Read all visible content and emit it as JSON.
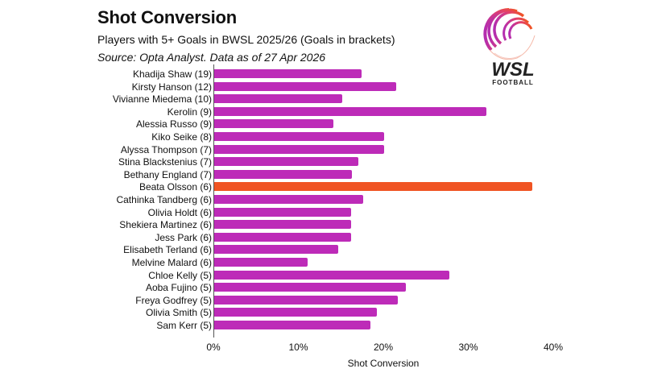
{
  "header": {
    "title": "Shot Conversion",
    "subtitle": "Players with 5+ Goals in BWSL 2025/26 (Goals in brackets)",
    "source": "Source: Opta Analyst. Data as of 27 Apr 2026"
  },
  "logo": {
    "text": "WSL",
    "subtext": "FOOTBALL"
  },
  "colors": {
    "default_bar": "#BD2BB8",
    "highlight_bar": "#F05423",
    "axis": "#555555"
  },
  "chart_data": {
    "type": "bar",
    "orientation": "horizontal",
    "title": "Shot Conversion",
    "subtitle": "Players with 5+ Goals in BWSL 2025/26 (Goals in brackets)",
    "xlabel": "Shot Conversion",
    "ylabel": "",
    "xlim": [
      0,
      40
    ],
    "xticks": [
      "0%",
      "10%",
      "20%",
      "30%",
      "40%"
    ],
    "grid": false,
    "legend": null,
    "highlight": "Beata Olsson (6)",
    "categories": [
      "Khadija Shaw (19)",
      "Kirsty Hanson (12)",
      "Vivianne Miedema (10)",
      "Kerolin (9)",
      "Alessia Russo (9)",
      "Kiko Seike (8)",
      "Alyssa Thompson (7)",
      "Stina Blackstenius (7)",
      "Bethany England (7)",
      "Beata Olsson (6)",
      "Cathinka Tandberg (6)",
      "Olivia Holdt (6)",
      "Shekiera Martinez (6)",
      "Jess Park (6)",
      "Elisabeth Terland (6)",
      "Melvine Malard (6)",
      "Chloe Kelly (5)",
      "Aoba Fujino (5)",
      "Freya Godfrey (5)",
      "Olivia Smith (5)",
      "Sam Kerr (5)"
    ],
    "values": [
      17.4,
      21.5,
      15.2,
      32.1,
      14.1,
      20.1,
      20.1,
      17.1,
      16.3,
      37.5,
      17.6,
      16.2,
      16.2,
      16.2,
      14.7,
      11.1,
      27.8,
      22.7,
      21.7,
      19.2,
      18.5
    ],
    "unit": "%"
  }
}
